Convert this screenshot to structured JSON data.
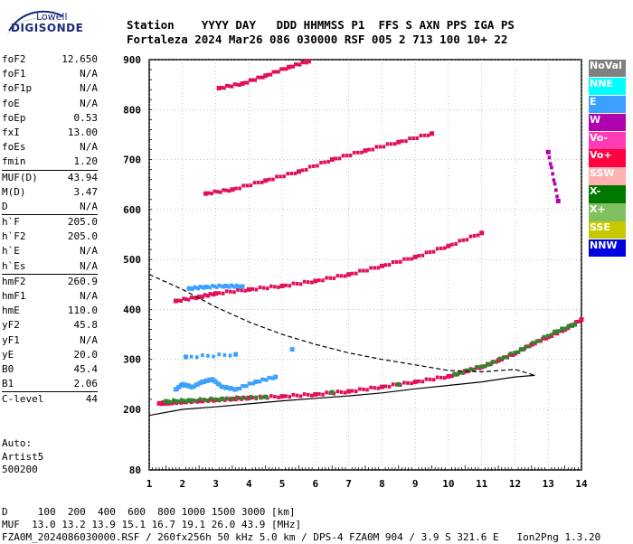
{
  "logo": {
    "line1": "Lowell",
    "line2": "DIGISONDE"
  },
  "header": {
    "line1": "Station    YYYY DAY   DDD HHMMSS P1  FFS S AXN PPS IGA PS",
    "line2": "Fortaleza 2024 Mar26 086 030000 RSF 005 2 713 100 10+ 22"
  },
  "params": {
    "group1": [
      {
        "name": "foF2",
        "value": "12.650"
      },
      {
        "name": "foF1",
        "value": "N/A"
      },
      {
        "name": "foF1p",
        "value": "N/A"
      },
      {
        "name": "foE",
        "value": "N/A"
      },
      {
        "name": "foEp",
        "value": "0.53"
      },
      {
        "name": "fxI",
        "value": "13.00"
      },
      {
        "name": "foEs",
        "value": "N/A"
      },
      {
        "name": "fmin",
        "value": "1.20"
      }
    ],
    "group2": [
      {
        "name": "MUF(D)",
        "value": "43.94"
      },
      {
        "name": "M(D)",
        "value": "3.47"
      },
      {
        "name": "D",
        "value": "N/A"
      }
    ],
    "group3": [
      {
        "name": "h`F",
        "value": "205.0"
      },
      {
        "name": "h`F2",
        "value": "205.0"
      },
      {
        "name": "h`E",
        "value": "N/A"
      },
      {
        "name": "h`Es",
        "value": "N/A"
      }
    ],
    "group4": [
      {
        "name": "hmF2",
        "value": "260.9"
      },
      {
        "name": "hmF1",
        "value": "N/A"
      },
      {
        "name": "hmE",
        "value": "110.0"
      },
      {
        "name": "yF2",
        "value": "45.8"
      },
      {
        "name": "yF1",
        "value": "N/A"
      },
      {
        "name": "yE",
        "value": "20.0"
      },
      {
        "name": "B0",
        "value": "45.4"
      },
      {
        "name": "B1",
        "value": "2.06"
      }
    ],
    "group5": [
      {
        "name": "C-level",
        "value": "44"
      }
    ]
  },
  "tail": {
    "line1": "Auto:",
    "line2": "Artist5",
    "line3": "500200"
  },
  "legend": [
    {
      "label": "NoVal",
      "color": "#808080"
    },
    {
      "label": "NNE",
      "color": "#00ffff"
    },
    {
      "label": "E",
      "color": "#3ca0ff"
    },
    {
      "label": "W",
      "color": "#b000b0"
    },
    {
      "label": "Vo-",
      "color": "#ff3cb4"
    },
    {
      "label": "Vo+",
      "color": "#ff0040"
    },
    {
      "label": "SSW",
      "color": "#ffb0b0"
    },
    {
      "label": "X-",
      "color": "#007800"
    },
    {
      "label": "X+",
      "color": "#80c060"
    },
    {
      "label": "SSE",
      "color": "#c8c800"
    },
    {
      "label": "NNW",
      "color": "#0000e0"
    }
  ],
  "footer": {
    "line1": "D     100  200  400  600  800 1000 1500 3000 [km]",
    "line2": "MUF  13.0 13.2 13.9 15.1 16.7 19.1 26.0 43.9 [MHz]",
    "line3": "FZA0M_2024086030000.RSF / 260fx256h 50 kHz 5.0 km / DPS-4 FZA0M 904 / 3.9 S 321.6 E   Ion2Png 1.3.20"
  },
  "chart_data": {
    "type": "scatter",
    "xlim": [
      1,
      14
    ],
    "ylim": [
      80,
      900
    ],
    "x_ticks": [
      "1",
      "2",
      "3",
      "4",
      "5",
      "6",
      "7",
      "8",
      "9",
      "10",
      "11",
      "12",
      "13",
      "14"
    ],
    "y_ticks": [
      "80",
      "200",
      "300",
      "400",
      "500",
      "600",
      "700",
      "800",
      "900"
    ],
    "grid": "dotted",
    "series": [
      {
        "color": "#e0105a",
        "points": [
          [
            1.3,
            212
          ],
          [
            1.6,
            213
          ],
          [
            2,
            215
          ],
          [
            2.5,
            217
          ],
          [
            3,
            219
          ],
          [
            3.5,
            221
          ],
          [
            4,
            223
          ],
          [
            5,
            226
          ],
          [
            6,
            230
          ],
          [
            7,
            236
          ],
          [
            8,
            245
          ],
          [
            9,
            255
          ],
          [
            10,
            266
          ],
          [
            10.5,
            276
          ],
          [
            11,
            285
          ],
          [
            11.5,
            298
          ],
          [
            12,
            312
          ],
          [
            12.5,
            330
          ],
          [
            13,
            345
          ],
          [
            13.5,
            360
          ],
          [
            14,
            380
          ]
        ]
      },
      {
        "color": "#2a8a2a",
        "points": [
          [
            1.5,
            216
          ],
          [
            2.2,
            218
          ],
          [
            3.2,
            221
          ],
          [
            4.5,
            225
          ],
          [
            6.5,
            234
          ],
          [
            8.5,
            250
          ],
          [
            10.2,
            270
          ],
          [
            11.2,
            290
          ],
          [
            12.2,
            320
          ],
          [
            13.2,
            355
          ],
          [
            13.8,
            370
          ]
        ]
      },
      {
        "color": "#3ca0ff",
        "points": [
          [
            1.8,
            240
          ],
          [
            2.0,
            250
          ],
          [
            2.3,
            245
          ],
          [
            2.6,
            255
          ],
          [
            2.9,
            260
          ],
          [
            3.2,
            245
          ],
          [
            3.6,
            240
          ],
          [
            4.2,
            255
          ],
          [
            4.8,
            265
          ],
          [
            2.1,
            305
          ],
          [
            3.6,
            310
          ],
          [
            5.3,
            320
          ]
        ]
      },
      {
        "color": "#e0105a",
        "points": [
          [
            1.8,
            417
          ],
          [
            2.5,
            425
          ],
          [
            3,
            432
          ],
          [
            4,
            440
          ],
          [
            5,
            447
          ],
          [
            6,
            457
          ],
          [
            7,
            470
          ],
          [
            8,
            487
          ],
          [
            9,
            505
          ],
          [
            10,
            527
          ],
          [
            11,
            553
          ]
        ]
      },
      {
        "color": "#3ca0ff",
        "points": [
          [
            2.2,
            442
          ],
          [
            2.7,
            445
          ],
          [
            3.3,
            447
          ],
          [
            3.8,
            446
          ]
        ]
      },
      {
        "color": "#e0105a",
        "points": [
          [
            2.7,
            632
          ],
          [
            3.5,
            640
          ],
          [
            4.5,
            658
          ],
          [
            5.5,
            676
          ],
          [
            6.5,
            700
          ],
          [
            7.5,
            718
          ],
          [
            8.5,
            735
          ],
          [
            9.5,
            752
          ]
        ]
      },
      {
        "color": "#e0105a",
        "points": [
          [
            3.1,
            843
          ],
          [
            3.8,
            852
          ],
          [
            4.5,
            868
          ],
          [
            5.2,
            885
          ],
          [
            5.8,
            897
          ]
        ]
      },
      {
        "color": "#b000b0",
        "points": [
          [
            13,
            715
          ],
          [
            13.3,
            617
          ]
        ]
      }
    ],
    "curves": [
      {
        "name": "profile",
        "style": "solid",
        "color": "#000000",
        "points": [
          [
            1,
            188
          ],
          [
            2,
            200
          ],
          [
            3,
            205
          ],
          [
            4,
            211
          ],
          [
            5,
            217
          ],
          [
            6,
            222
          ],
          [
            7,
            227
          ],
          [
            8,
            233
          ],
          [
            9,
            241
          ],
          [
            10,
            248
          ],
          [
            11,
            255
          ],
          [
            12,
            265
          ],
          [
            12.6,
            268
          ]
        ]
      },
      {
        "name": "muf",
        "style": "dashed",
        "color": "#000000",
        "points": [
          [
            1,
            470
          ],
          [
            2,
            440
          ],
          [
            3,
            405
          ],
          [
            4,
            375
          ],
          [
            5,
            350
          ],
          [
            6,
            330
          ],
          [
            7,
            313
          ],
          [
            8,
            300
          ],
          [
            9,
            289
          ],
          [
            10,
            278
          ],
          [
            11,
            275
          ],
          [
            12,
            280
          ],
          [
            12.6,
            268
          ]
        ]
      }
    ]
  }
}
